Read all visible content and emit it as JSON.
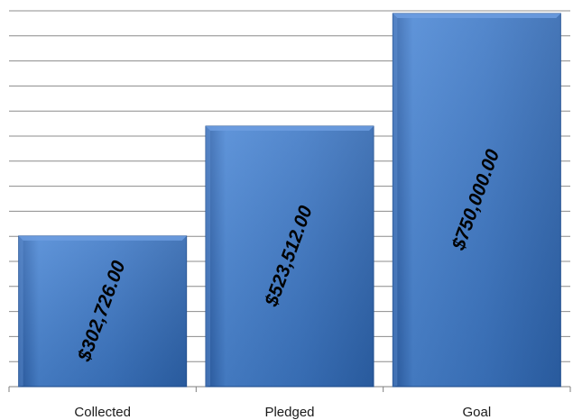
{
  "chart_data": {
    "type": "bar",
    "categories": [
      "Collected",
      "Pledged",
      "Goal"
    ],
    "values": [
      302726,
      523512,
      750000
    ],
    "data_labels": [
      "$302,726.00",
      "$523,512.00",
      "$750,000.00"
    ],
    "title": "",
    "xlabel": "",
    "ylabel": "",
    "ylim": [
      0,
      750000
    ],
    "grid": true,
    "legend": "none",
    "colors": {
      "bar": "#3d78c6",
      "bar_dark": "#1f4f93",
      "bar_light": "#6d9ee0",
      "grid": "#8c8c8c",
      "axis": "#7f7f7f"
    }
  }
}
